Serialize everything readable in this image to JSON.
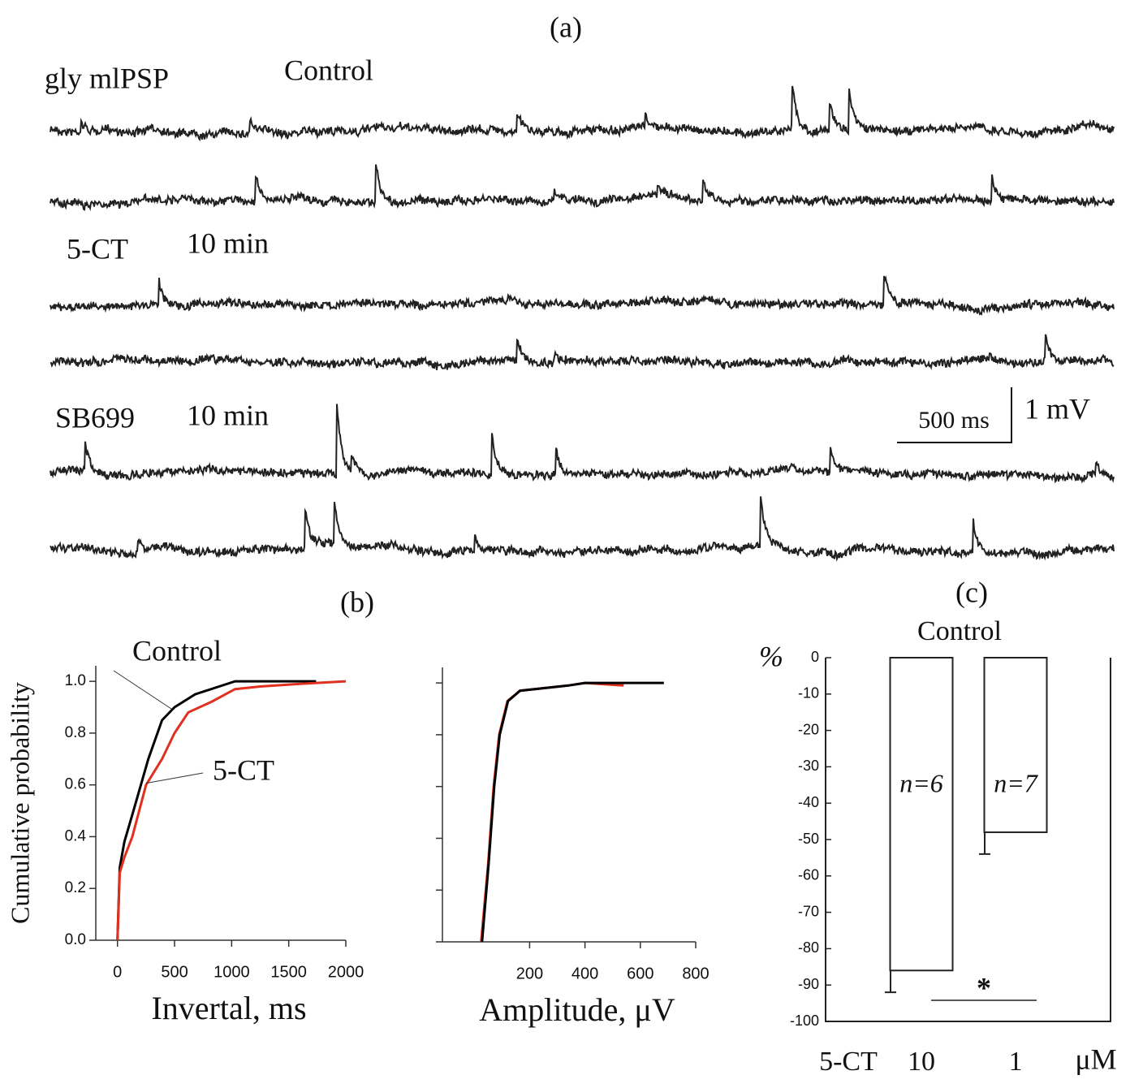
{
  "panel_a": {
    "label": "(a)",
    "trace_labels": [
      "gly mlPSP",
      "Control",
      "5-CT",
      "10 min",
      "SB699",
      "10 min"
    ],
    "scale_bar": {
      "time": "500 ms",
      "voltage": "1 mV"
    }
  },
  "panel_b_label": "(b)",
  "chart_data": [
    {
      "type": "line",
      "xlabel": "Invertal, ms",
      "ylabel": "Cumulative probability",
      "xlim": [
        -190,
        2000
      ],
      "xticks": [
        0,
        500,
        1000,
        1500,
        2000
      ],
      "ylim": [
        0,
        1.06
      ],
      "yticks": [
        {
          "value": 0,
          "label": "0.0"
        },
        0.2,
        0.4,
        0.6,
        0.8,
        {
          "value": 1,
          "label": "1.0"
        }
      ],
      "show_ytick_labels": true,
      "series": [
        {
          "name": "Control",
          "color": "#000000",
          "x": [
            0,
            20,
            60,
            140,
            270,
            390,
            500,
            680,
            890,
            1030,
            1300,
            1740
          ],
          "values": [
            0,
            0.28,
            0.38,
            0.5,
            0.7,
            0.85,
            0.9,
            0.95,
            0.98,
            1.0,
            1.0,
            1.0
          ]
        },
        {
          "name": "5-CT",
          "color": "#e03020",
          "x": [
            0,
            20,
            60,
            130,
            250,
            390,
            500,
            620,
            820,
            1030,
            1250,
            1600,
            2000
          ],
          "values": [
            0,
            0.26,
            0.32,
            0.4,
            0.6,
            0.7,
            0.8,
            0.88,
            0.92,
            0.97,
            0.98,
            0.99,
            1.0
          ]
        }
      ]
    },
    {
      "type": "line",
      "xlabel": "Amplitude, μV",
      "xlim": [
        -115,
        800
      ],
      "xticks": [
        200,
        400,
        600,
        800
      ],
      "ylim": [
        0,
        1.06
      ],
      "yticks": [
        0,
        0.2,
        0.4,
        0.6,
        0.8,
        1
      ],
      "show_ytick_labels": false,
      "series": [
        {
          "color": "#e03020",
          "x": [
            25,
            50,
            70,
            90,
            120,
            165,
            340,
            400,
            540
          ],
          "values": [
            0,
            0.3,
            0.6,
            0.8,
            0.93,
            0.97,
            0.99,
            1.0,
            0.99
          ]
        },
        {
          "color": "#000000",
          "x": [
            28,
            52,
            72,
            92,
            122,
            165,
            340,
            400,
            685
          ],
          "values": [
            0,
            0.3,
            0.6,
            0.8,
            0.93,
            0.97,
            0.99,
            1.0,
            1.0
          ]
        }
      ]
    },
    {
      "type": "bar",
      "panel_label": "(c)",
      "title": "Control",
      "ylabel": "%",
      "xlabel_left": "5-CT",
      "xlabel_right": "μM",
      "categories": [
        "10",
        "1"
      ],
      "values": [
        -86,
        -48
      ],
      "errors": [
        6,
        6
      ],
      "bar_labels": [
        "n=6",
        "n=7"
      ],
      "color": "#ffffff",
      "ylim": [
        -100,
        0
      ],
      "yticks": [
        0,
        -10,
        -20,
        -30,
        -40,
        -50,
        -60,
        -70,
        -80,
        -90,
        -100
      ],
      "significance": {
        "label": "*",
        "between": [
          0,
          1
        ]
      }
    }
  ]
}
